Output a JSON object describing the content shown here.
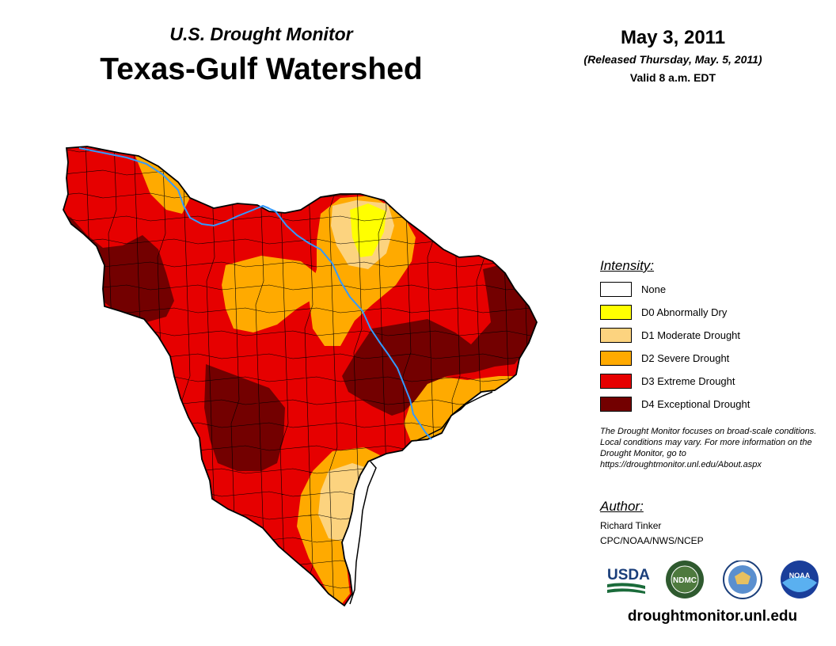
{
  "header": {
    "subtitle": "U.S. Drought Monitor",
    "title": "Texas-Gulf Watershed",
    "date": "May 3, 2011",
    "released": "(Released Thursday, May. 5, 2011)",
    "valid": "Valid 8 a.m. EDT"
  },
  "legend": {
    "title": "Intensity:",
    "items": [
      {
        "label": "None",
        "color": "#ffffff"
      },
      {
        "label": "D0 Abnormally Dry",
        "color": "#ffff00"
      },
      {
        "label": "D1 Moderate Drought",
        "color": "#fcd37f"
      },
      {
        "label": "D2 Severe Drought",
        "color": "#ffaa00"
      },
      {
        "label": "D3 Extreme Drought",
        "color": "#e60000"
      },
      {
        "label": "D4 Exceptional Drought",
        "color": "#730000"
      }
    ]
  },
  "note": "The Drought Monitor focuses on broad-scale conditions. Local conditions may vary. For more information on the Drought Monitor, go to https://droughtmonitor.unl.edu/About.aspx",
  "author": {
    "title": "Author:",
    "name": "Richard Tinker",
    "org": "CPC/NOAA/NWS/NCEP"
  },
  "logos": {
    "usda": "USDA",
    "ndmc": "NDMC",
    "doc_icon": "eagle-seal-icon",
    "noaa": "NOAA"
  },
  "website": "droughtmonitor.unl.edu",
  "map": {
    "river_color": "#3399ff",
    "border_color": "#000000"
  }
}
